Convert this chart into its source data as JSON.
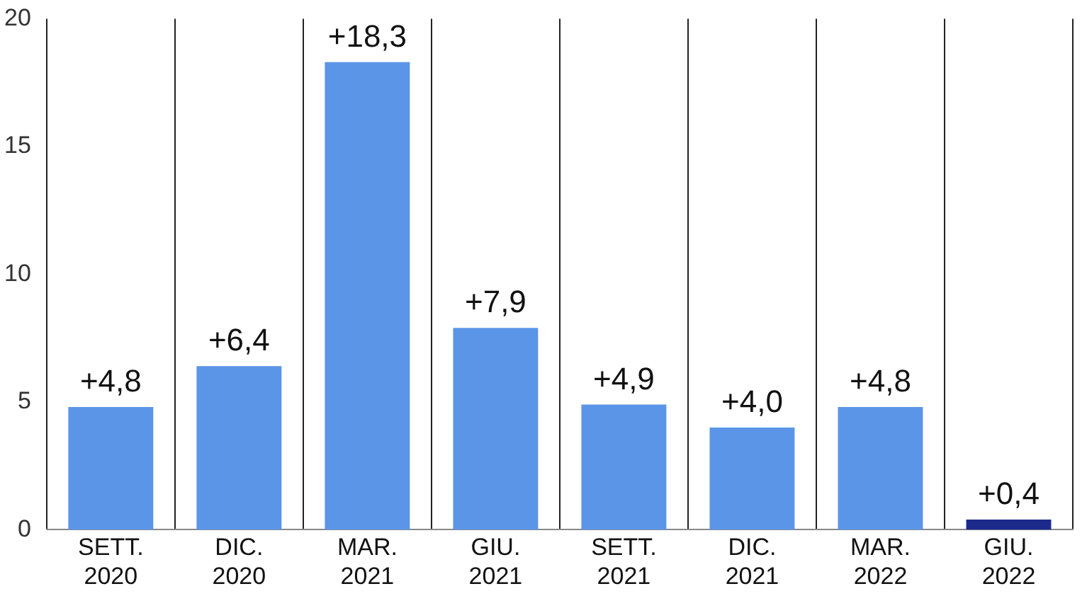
{
  "chart_data": {
    "type": "bar",
    "categories": [
      "SETT. 2020",
      "DIC. 2020",
      "MAR. 2021",
      "GIU. 2021",
      "SETT. 2021",
      "DIC. 2021",
      "MAR. 2022",
      "GIU. 2022"
    ],
    "values": [
      4.8,
      6.4,
      18.3,
      7.9,
      4.9,
      4.0,
      4.8,
      0.4
    ],
    "colors": [
      "#5b95e8",
      "#5b95e8",
      "#5b95e8",
      "#5b95e8",
      "#5b95e8",
      "#5b95e8",
      "#5b95e8",
      "#1c2a8c"
    ],
    "value_labels": [
      "+4,8",
      "+6,4",
      "+18,3",
      "+7,9",
      "+4,9",
      "+4,0",
      "+4,8",
      "+0,4"
    ],
    "ylim": [
      0,
      20
    ],
    "yticks": [
      0,
      5,
      10,
      15,
      20
    ],
    "grid": "x",
    "legend": false
  }
}
